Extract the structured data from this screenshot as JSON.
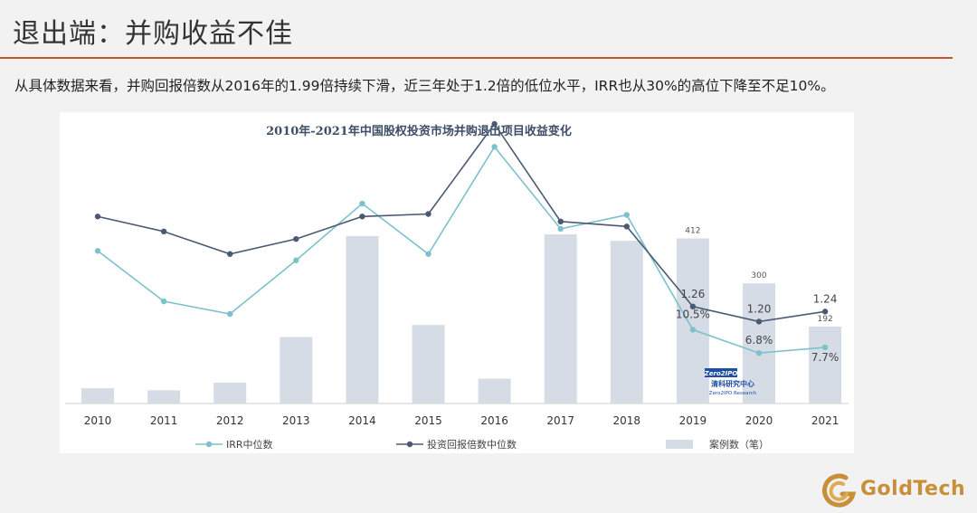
{
  "header": {
    "title": "退出端：并购收益不佳",
    "summary": "从具体数据来看，并购回报倍数从2016年的1.99倍持续下滑，近三年处于1.2倍的低位水平，IRR也从30%的高位下降至不足10%。"
  },
  "brand": {
    "logo_text": "GoldTech",
    "accent_color": "#c8542f",
    "logo_color": "#c98e38"
  },
  "watermark": {
    "brand": "Zero2IPO",
    "cn_name": "清科研究中心",
    "en_name": "Zero2IPO Research"
  },
  "chart_data": {
    "type": "bar",
    "title": "2010年-2021年中国股权投资市场并购退出项目收益变化",
    "categories": [
      "2010",
      "2011",
      "2012",
      "2013",
      "2014",
      "2015",
      "2016",
      "2017",
      "2018",
      "2019",
      "2020",
      "2021"
    ],
    "series": [
      {
        "name": "案例数（笔）",
        "type": "bar",
        "color": "#d5dce6",
        "values": [
          38,
          33,
          52,
          166,
          418,
          196,
          62,
          422,
          406,
          412,
          300,
          192
        ],
        "data_labels": {
          "9": "412",
          "10": "300",
          "11": "192"
        }
      },
      {
        "name": "IRR中位数",
        "type": "line",
        "color": "#7dc1cc",
        "values": [
          23.0,
          15.0,
          13.0,
          21.5,
          30.5,
          22.5,
          39.5,
          26.5,
          28.7,
          10.5,
          6.8,
          7.7
        ],
        "data_labels": {
          "9": "10.5%",
          "10": "6.8%",
          "11": "7.7%"
        }
      },
      {
        "name": "投资回报倍数中位数",
        "type": "line",
        "color": "#4a5a72",
        "values": [
          1.62,
          1.56,
          1.47,
          1.53,
          1.62,
          1.63,
          1.99,
          1.6,
          1.58,
          1.26,
          1.2,
          1.24
        ],
        "data_labels": {
          "9": "1.26",
          "10": "1.20",
          "11": "1.24"
        }
      }
    ],
    "legend": {
      "placement": "bottom",
      "entries": [
        "IRR中位数",
        "投资回报倍数中位数",
        "案例数（笔）"
      ]
    },
    "grid": false,
    "xlabel": "",
    "ylabel": ""
  }
}
